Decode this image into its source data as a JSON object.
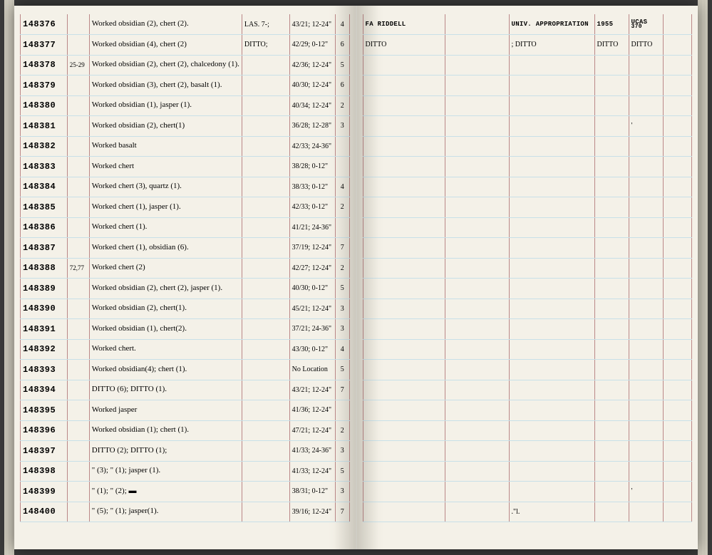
{
  "page_colors": {
    "paper": "#f4f1e8",
    "rule_v": "#b88",
    "rule_h": "#c8e0e8",
    "ink": "#222"
  },
  "header_right": {
    "collector": "FA RIDDELL",
    "source": "UNIV. APPROPRIATION",
    "year": "1955",
    "code": "UCAS",
    "code_sub": "370"
  },
  "left_rows": [
    {
      "id": "148376",
      "note": "",
      "desc": "Worked obsidian (2), chert (2).",
      "loc": "LAS. 7-;",
      "coord": "43/21;  12-24\"",
      "n": "4"
    },
    {
      "id": "148377",
      "note": "",
      "desc": "Worked obsidian (4), chert (2)",
      "loc": "DITTO;",
      "coord": "42/29;  0-12\"",
      "n": "6"
    },
    {
      "id": "148378",
      "note": "25-29",
      "desc": "Worked obsidian (2), chert (2), chalcedony (1).",
      "loc": "",
      "coord": "42/36;  12-24\"",
      "n": "5"
    },
    {
      "id": "148379",
      "note": "",
      "desc": "Worked obsidian (3), chert (2), basalt (1).",
      "loc": "",
      "coord": "40/30;  12-24\"",
      "n": "6"
    },
    {
      "id": "148380",
      "note": "",
      "desc": "Worked obsidian (1), jasper (1).",
      "loc": "",
      "coord": "40/34;  12-24\"",
      "n": "2"
    },
    {
      "id": "148381",
      "note": "",
      "desc": "Worked obsidian (2), chert(1)",
      "loc": "",
      "coord": "36/28;  12-28\"",
      "n": "3"
    },
    {
      "id": "148382",
      "note": "",
      "desc": "Worked basalt",
      "loc": "",
      "coord": "42/33;  24-36\"",
      "n": ""
    },
    {
      "id": "148383",
      "note": "",
      "desc": "Worked chert",
      "loc": "",
      "coord": "38/28;  0-12\"",
      "n": ""
    },
    {
      "id": "148384",
      "note": "",
      "desc": "Worked chert (3), quartz (1).",
      "loc": "",
      "coord": "38/33;  0-12\"",
      "n": "4"
    },
    {
      "id": "148385",
      "note": "",
      "desc": "Worked chert (1), jasper (1).",
      "loc": "",
      "coord": "42/33;  0-12\"",
      "n": "2"
    },
    {
      "id": "148386",
      "note": "",
      "desc": "Worked chert (1).",
      "loc": "",
      "coord": "41/21;  24-36\"",
      "n": ""
    },
    {
      "id": "148387",
      "note": "",
      "desc": "Worked chert (1), obsidian (6).",
      "loc": "",
      "coord": "37/19;  12-24\"",
      "n": "7"
    },
    {
      "id": "148388",
      "note": "72,77",
      "desc": "Worked chert (2)",
      "loc": "",
      "coord": "42/27;  12-24\"",
      "n": "2"
    },
    {
      "id": "148389",
      "note": "",
      "desc": "Worked obsidian (2), chert (2), jasper (1).",
      "loc": "",
      "coord": "40/30;  0-12\"",
      "n": "5"
    },
    {
      "id": "148390",
      "note": "",
      "desc": "Worked obsidian (2), chert(1).",
      "loc": "",
      "coord": "45/21;  12-24\"",
      "n": "3"
    },
    {
      "id": "148391",
      "note": "",
      "desc": "Worked obsidian (1), chert(2).",
      "loc": "",
      "coord": "37/21;  24-36\"",
      "n": "3"
    },
    {
      "id": "148392",
      "note": "",
      "desc": "Worked chert.",
      "loc": "",
      "coord": "43/30;  0-12\"",
      "n": "4"
    },
    {
      "id": "148393",
      "note": "",
      "desc": "Worked obsidian(4); chert (1).",
      "loc": "",
      "coord": "No Location",
      "n": "5"
    },
    {
      "id": "148394",
      "note": "",
      "desc": "DITTO (6); DITTO (1).",
      "loc": "",
      "coord": "43/21;  12-24\"",
      "n": "7"
    },
    {
      "id": "148395",
      "note": "",
      "desc": "Worked jasper",
      "loc": "",
      "coord": "41/36;  12-24\"",
      "n": ""
    },
    {
      "id": "148396",
      "note": "",
      "desc": "Worked obsidian (1); chert (1).",
      "loc": "",
      "coord": "47/21;  12-24\"",
      "n": "2"
    },
    {
      "id": "148397",
      "note": "",
      "desc": "DITTO (2); DITTO (1);",
      "loc": "",
      "coord": "41/33;  24-36\"",
      "n": "3"
    },
    {
      "id": "148398",
      "note": "",
      "desc": "\" (3); \" (1); jasper (1).",
      "loc": "",
      "coord": "41/33;  12-24\"",
      "n": "5"
    },
    {
      "id": "148399",
      "note": "",
      "desc": "\" (1); \" (2); ▬",
      "loc": "",
      "coord": "38/31;  0-12\"",
      "n": "3"
    },
    {
      "id": "148400",
      "note": "",
      "desc": "\" (5); \" (1); jasper(1).",
      "loc": "",
      "coord": "39/16;  12-24\"",
      "n": "7"
    }
  ],
  "right_rows": [
    {
      "a": "FA RIDDELL",
      "b": "",
      "c": "UNIV. APPROPRIATION",
      "d": "1955",
      "e": "UCAS",
      "f": "370"
    },
    {
      "a": "DITTO",
      "b": "",
      "c": "; DITTO",
      "d": "DITTO",
      "e": "DITTO",
      "f": ""
    },
    {
      "a": "",
      "b": "",
      "c": "",
      "d": "",
      "e": "",
      "f": ""
    },
    {
      "a": "",
      "b": "",
      "c": "",
      "d": "",
      "e": "",
      "f": ""
    },
    {
      "a": "",
      "b": "",
      "c": "",
      "d": "",
      "e": "",
      "f": ""
    },
    {
      "a": "",
      "b": "",
      "c": "",
      "d": "",
      "e": "'",
      "f": ""
    },
    {
      "a": "",
      "b": "",
      "c": "",
      "d": "",
      "e": "",
      "f": ""
    },
    {
      "a": "",
      "b": "",
      "c": "",
      "d": "",
      "e": "",
      "f": ""
    },
    {
      "a": "",
      "b": "",
      "c": "",
      "d": "",
      "e": "",
      "f": ""
    },
    {
      "a": "",
      "b": "",
      "c": "",
      "d": "",
      "e": "",
      "f": ""
    },
    {
      "a": "",
      "b": "",
      "c": "",
      "d": "",
      "e": "",
      "f": ""
    },
    {
      "a": "",
      "b": "",
      "c": "",
      "d": "",
      "e": "",
      "f": ""
    },
    {
      "a": "",
      "b": "",
      "c": "",
      "d": "",
      "e": "",
      "f": ""
    },
    {
      "a": "",
      "b": "",
      "c": "",
      "d": "",
      "e": "",
      "f": ""
    },
    {
      "a": "",
      "b": "",
      "c": "",
      "d": "",
      "e": "",
      "f": ""
    },
    {
      "a": "",
      "b": "",
      "c": "",
      "d": "",
      "e": "",
      "f": ""
    },
    {
      "a": "",
      "b": "",
      "c": "",
      "d": "",
      "e": "",
      "f": ""
    },
    {
      "a": "",
      "b": "",
      "c": "",
      "d": "",
      "e": "",
      "f": ""
    },
    {
      "a": "",
      "b": "",
      "c": "",
      "d": "",
      "e": "",
      "f": ""
    },
    {
      "a": "",
      "b": "",
      "c": "",
      "d": "",
      "e": "",
      "f": ""
    },
    {
      "a": "",
      "b": "",
      "c": "",
      "d": "",
      "e": "",
      "f": ""
    },
    {
      "a": "",
      "b": "",
      "c": "",
      "d": "",
      "e": "",
      "f": ""
    },
    {
      "a": "",
      "b": "",
      "c": "",
      "d": "",
      "e": "",
      "f": ""
    },
    {
      "a": "",
      "b": "",
      "c": "",
      "d": "",
      "e": "'",
      "f": ""
    },
    {
      "a": "",
      "b": "",
      "c": ".\"l.",
      "d": "",
      "e": "",
      "f": ""
    }
  ]
}
